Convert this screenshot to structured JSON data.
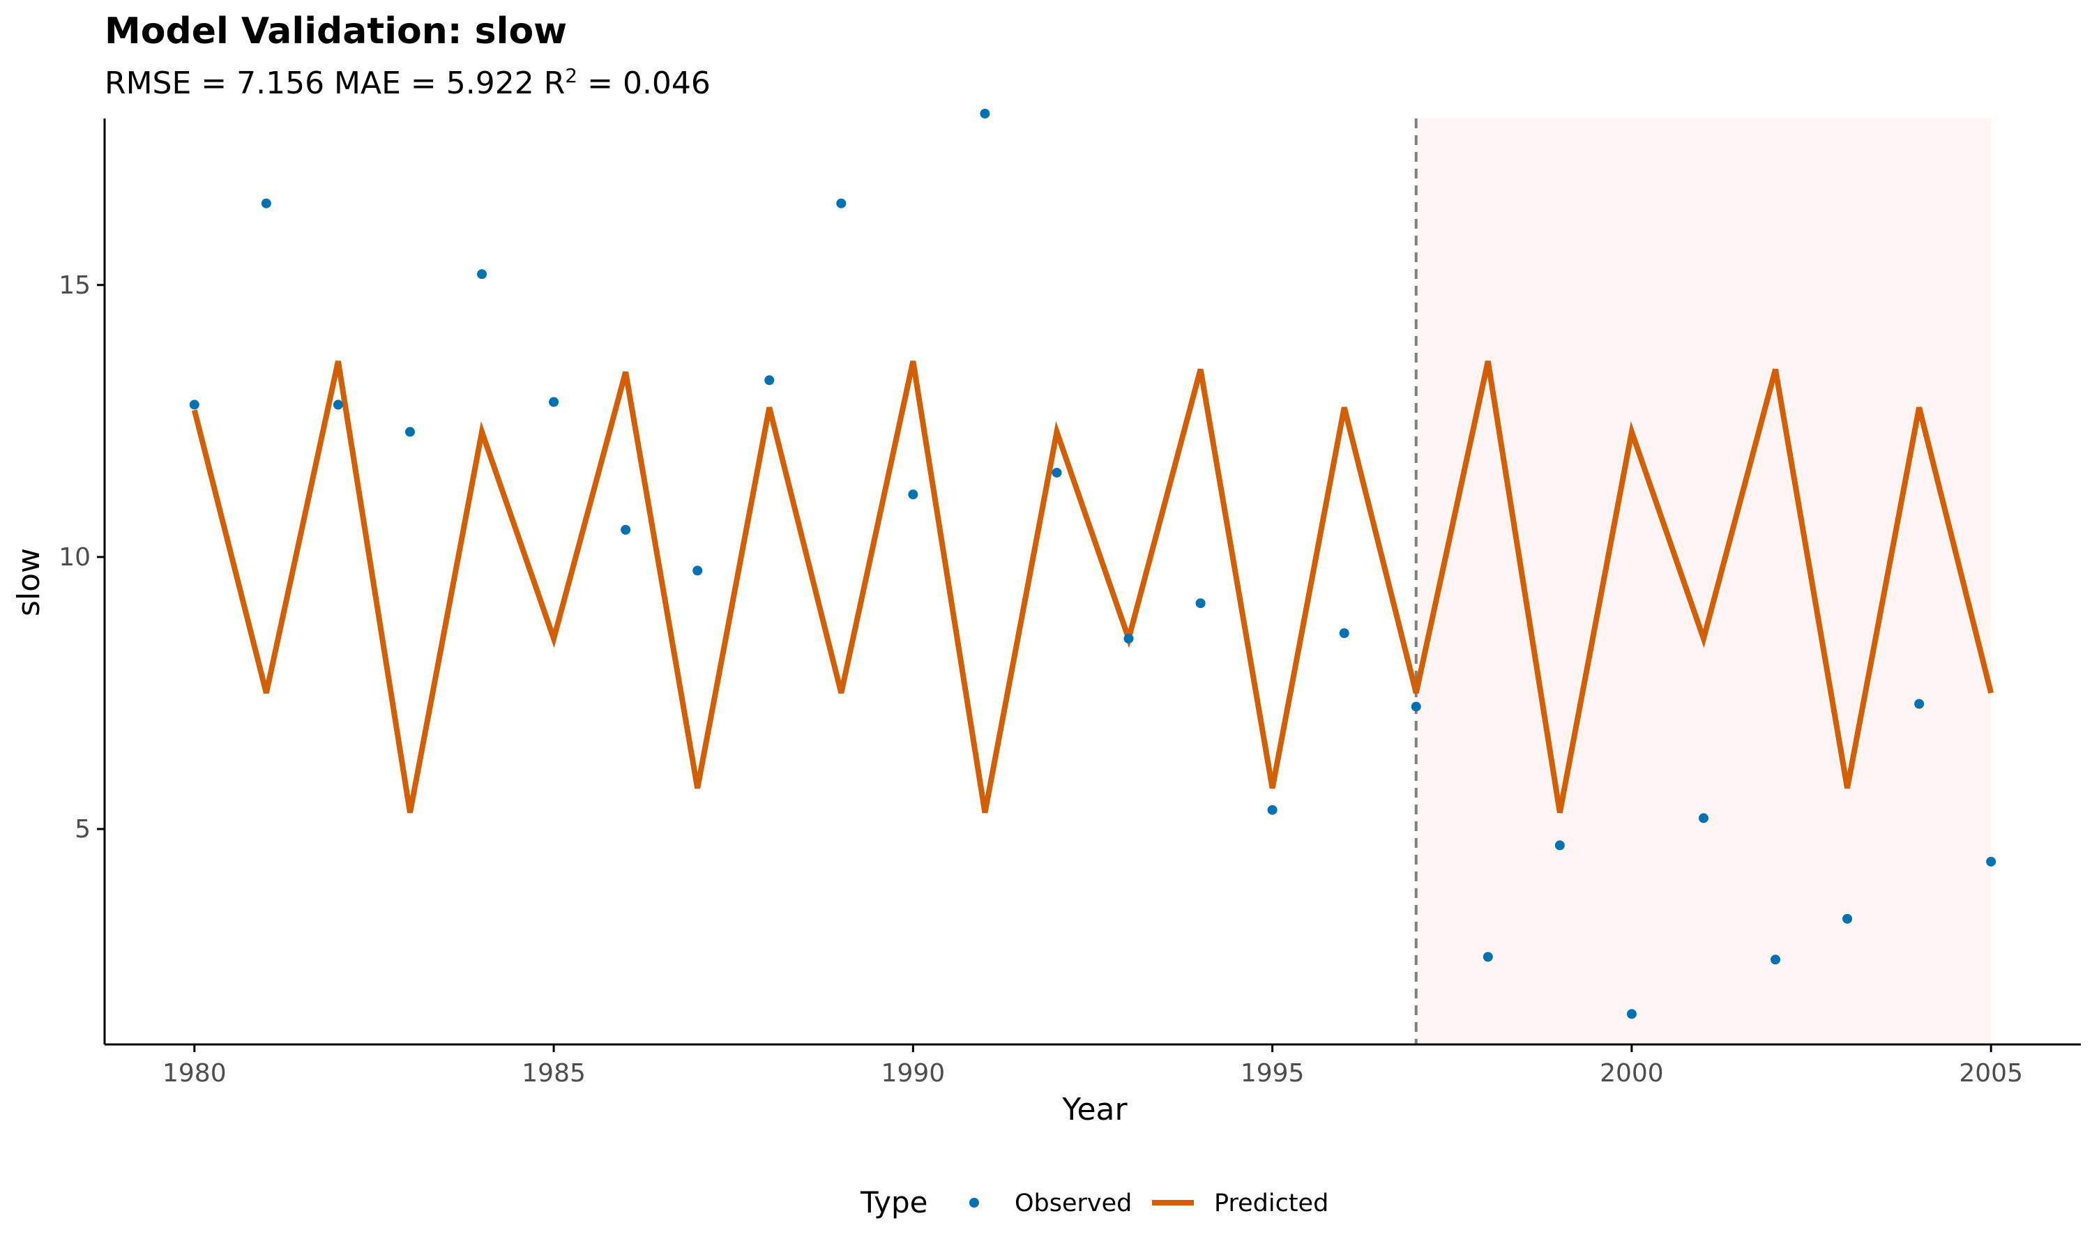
{
  "chart_data": {
    "type": "line",
    "title": "Model Validation: slow",
    "subtitle_parts": {
      "prefix": "RMSE = 7.156 MAE = 5.922 R",
      "superscript": "2",
      "suffix": " = 0.046"
    },
    "xlabel": "Year",
    "ylabel": "slow",
    "xlim": [
      1978.75,
      2006.25
    ],
    "ylim": [
      1.04,
      18.06
    ],
    "x_ticks": [
      1980,
      1985,
      1990,
      1995,
      2000,
      2005
    ],
    "y_ticks": [
      5,
      10,
      15
    ],
    "validation_split_year": 1997,
    "shaded_region": [
      1997,
      2005
    ],
    "legend": {
      "title": "Type",
      "placement": "bottom"
    },
    "colors": {
      "observed": "#0072B2",
      "predicted": "#D55E00",
      "shade": "#FFF5F4",
      "split_line": "#808080"
    },
    "series": [
      {
        "name": "Observed",
        "kind": "points",
        "x": [
          1980,
          1981,
          1982,
          1983,
          1984,
          1985,
          1986,
          1987,
          1988,
          1989,
          1990,
          1991,
          1992,
          1993,
          1994,
          1995,
          1996,
          1997,
          1998,
          1999,
          2000,
          2001,
          2002,
          2003,
          2004,
          2005
        ],
        "y": [
          12.8,
          16.5,
          12.8,
          12.3,
          15.2,
          12.85,
          10.5,
          9.75,
          13.25,
          16.5,
          11.15,
          18.15,
          11.55,
          8.5,
          9.15,
          5.35,
          8.6,
          7.25,
          2.65,
          4.7,
          1.6,
          5.2,
          2.6,
          3.35,
          7.3,
          4.4
        ]
      },
      {
        "name": "Predicted",
        "kind": "line",
        "x": [
          1980,
          1981,
          1982,
          1983,
          1984,
          1985,
          1986,
          1987,
          1988,
          1989,
          1990,
          1991,
          1992,
          1993,
          1994,
          1995,
          1996,
          1997,
          1998,
          1999,
          2000,
          2001,
          2002,
          2003,
          2004,
          2005
        ],
        "y": [
          12.7,
          7.5,
          13.6,
          5.3,
          12.3,
          8.5,
          13.4,
          5.75,
          12.75,
          7.5,
          13.6,
          5.3,
          12.3,
          8.5,
          13.45,
          5.75,
          12.75,
          7.5,
          13.6,
          5.3,
          12.3,
          8.5,
          13.45,
          5.75,
          12.75,
          7.5
        ]
      }
    ]
  }
}
